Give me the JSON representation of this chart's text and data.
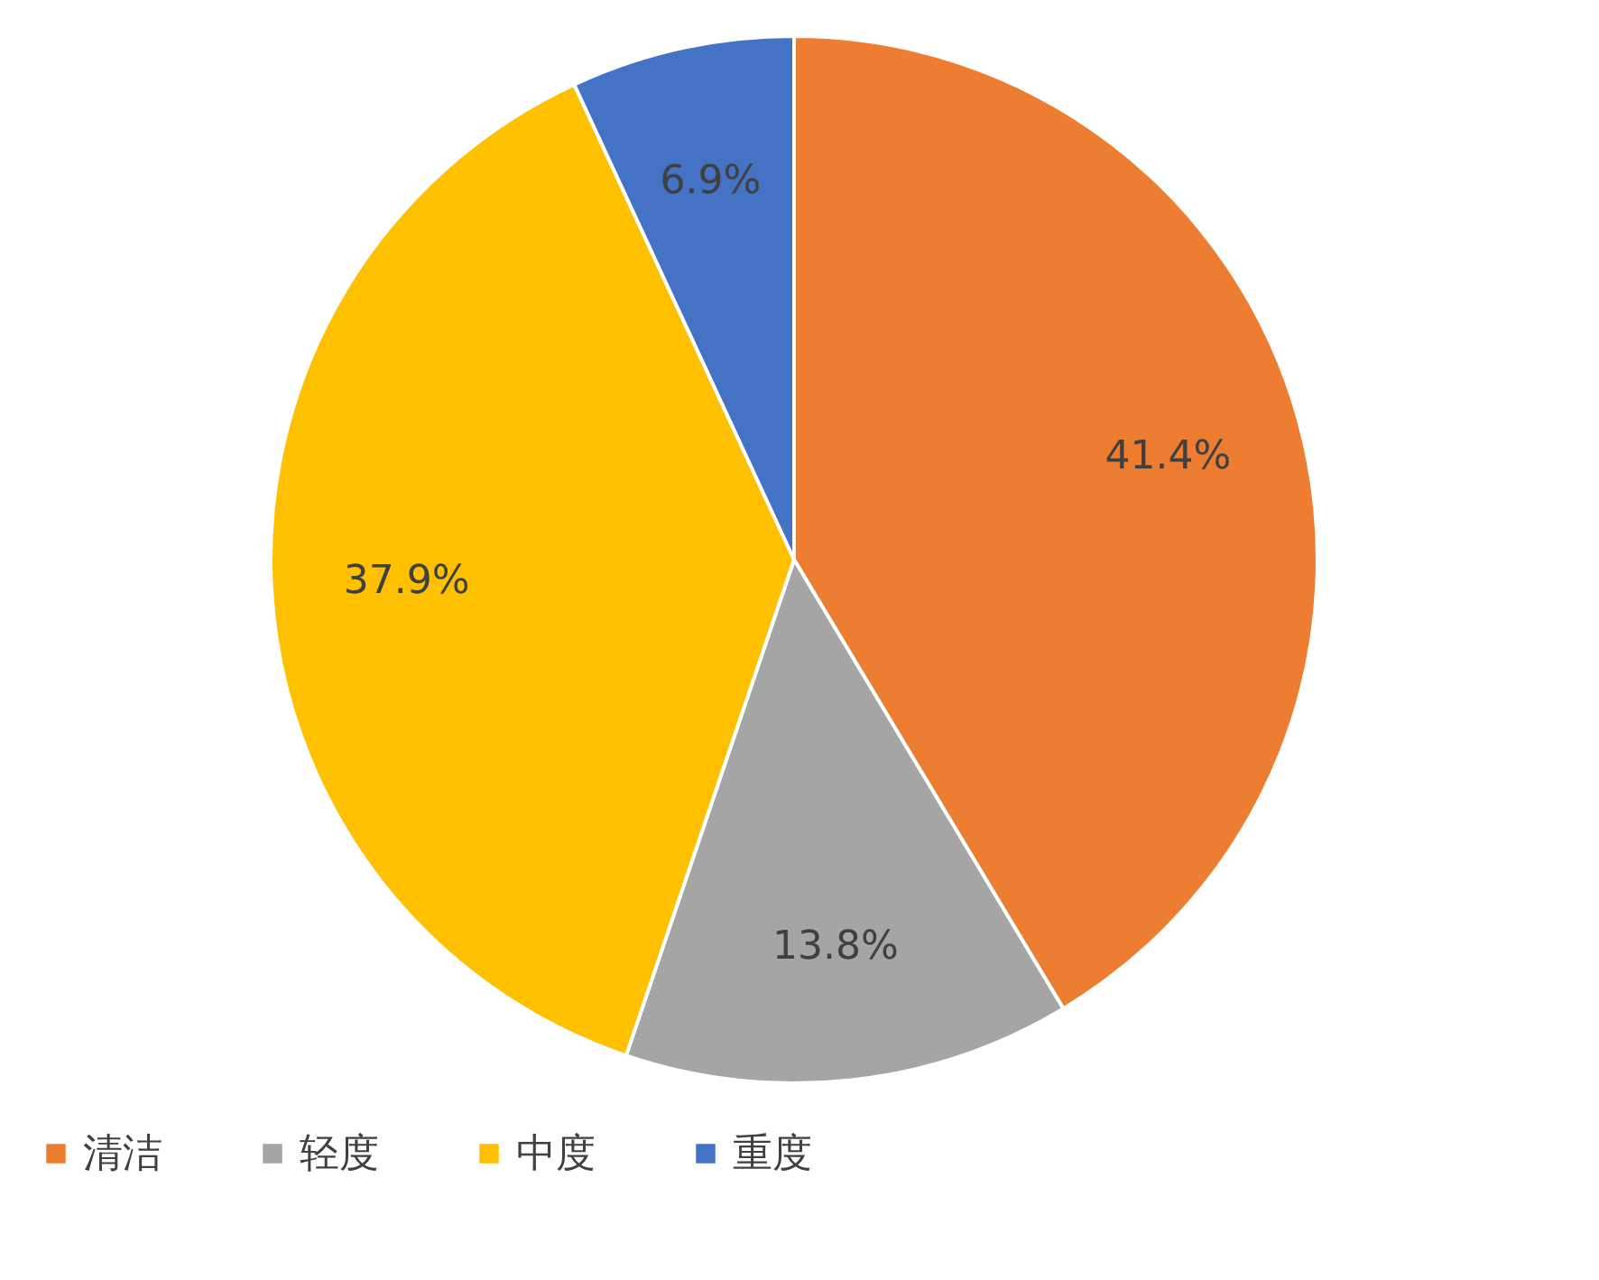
{
  "chart_data": {
    "type": "pie",
    "categories": [
      "清洁",
      "轻度",
      "中度",
      "重度"
    ],
    "values": [
      41.4,
      13.8,
      37.9,
      6.9
    ],
    "colors": [
      "#ed7d31",
      "#a5a5a5",
      "#ffc000",
      "#4472c4"
    ],
    "value_labels": [
      "41.4%",
      "13.8%",
      "37.9%",
      "6.9%"
    ],
    "legend": "bottom"
  }
}
